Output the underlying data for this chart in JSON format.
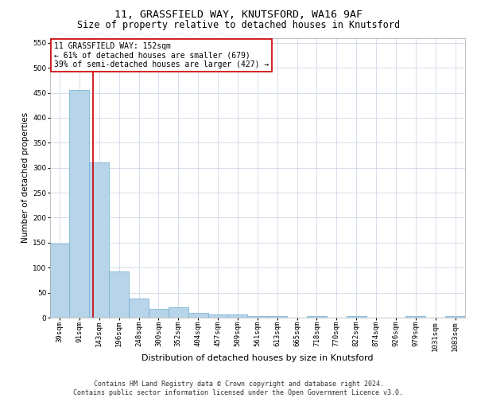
{
  "title1": "11, GRASSFIELD WAY, KNUTSFORD, WA16 9AF",
  "title2": "Size of property relative to detached houses in Knutsford",
  "xlabel": "Distribution of detached houses by size in Knutsford",
  "ylabel": "Number of detached properties",
  "bar_values": [
    148,
    455,
    310,
    93,
    38,
    17,
    20,
    10,
    7,
    6,
    4,
    3,
    0,
    4,
    0,
    4,
    0,
    0,
    4,
    0,
    4
  ],
  "bar_labels": [
    "39sqm",
    "91sqm",
    "143sqm",
    "196sqm",
    "248sqm",
    "300sqm",
    "352sqm",
    "404sqm",
    "457sqm",
    "509sqm",
    "561sqm",
    "613sqm",
    "665sqm",
    "718sqm",
    "770sqm",
    "822sqm",
    "874sqm",
    "926sqm",
    "979sqm",
    "1031sqm",
    "1083sqm"
  ],
  "bar_color": "#b8d4e8",
  "bar_edge_color": "#6aaed6",
  "vline_color": "#cc0000",
  "annotation_text": "11 GRASSFIELD WAY: 152sqm\n← 61% of detached houses are smaller (679)\n39% of semi-detached houses are larger (427) →",
  "annotation_box_color": "#ffffff",
  "annotation_box_edge": "#cc0000",
  "ylim": [
    0,
    560
  ],
  "yticks": [
    0,
    50,
    100,
    150,
    200,
    250,
    300,
    350,
    400,
    450,
    500,
    550
  ],
  "footer_text": "Contains HM Land Registry data © Crown copyright and database right 2024.\nContains public sector information licensed under the Open Government Licence v3.0.",
  "background_color": "#ffffff",
  "grid_color": "#d0d8e8",
  "title1_fontsize": 9.5,
  "title2_fontsize": 8.5,
  "xlabel_fontsize": 8,
  "ylabel_fontsize": 7.5,
  "tick_fontsize": 6.5,
  "annotation_fontsize": 7,
  "footer_fontsize": 6
}
